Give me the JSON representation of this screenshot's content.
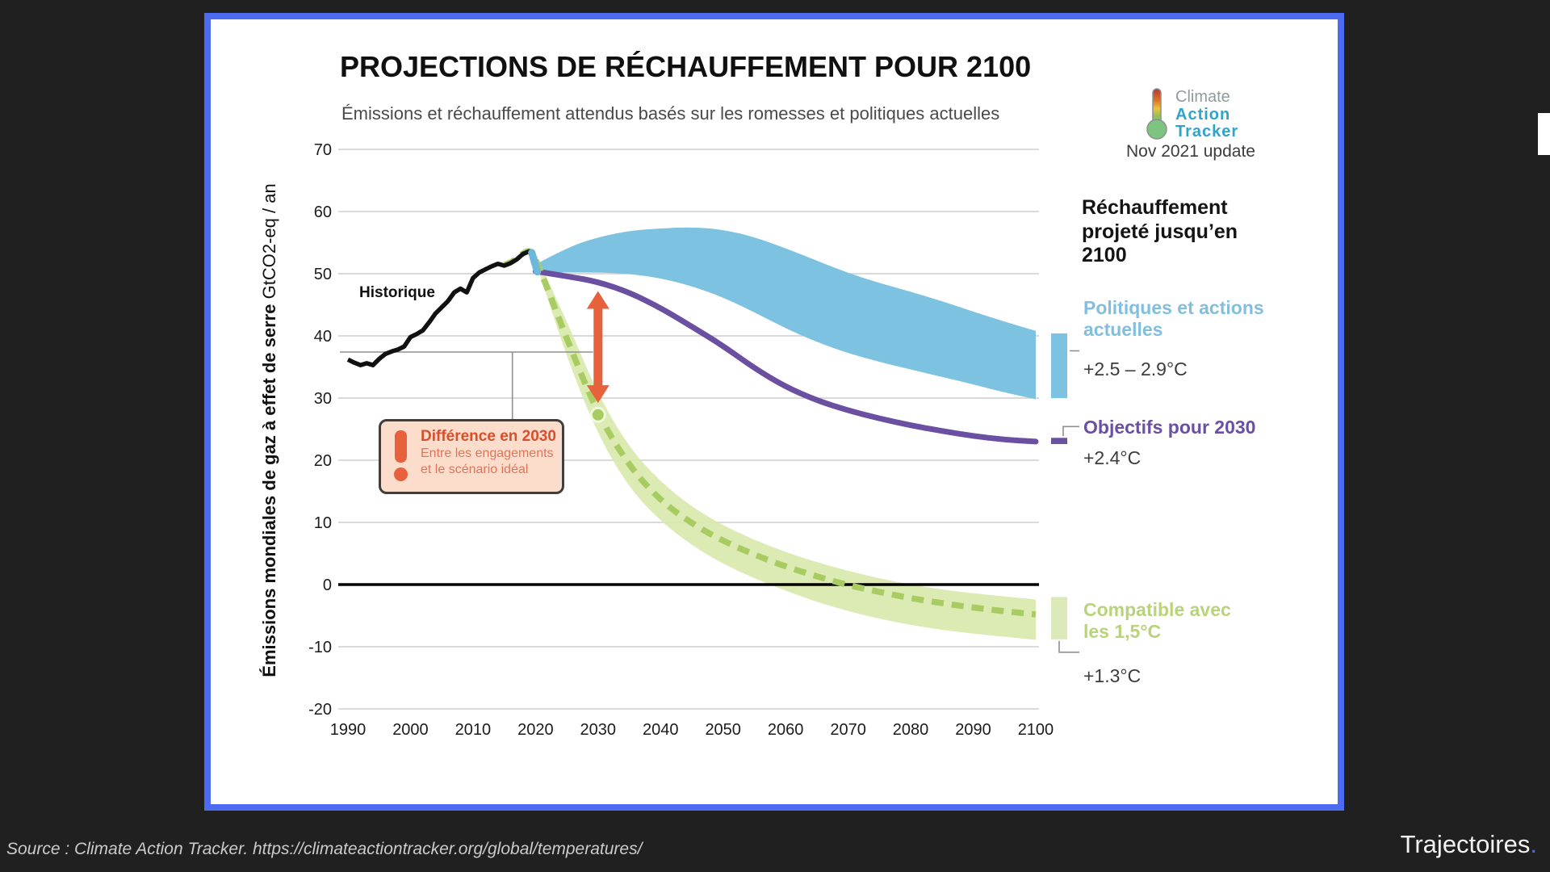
{
  "header": {
    "title": "PROJECTIONS DE RÉCHAUFFEMENT POUR 2100",
    "subtitle": "Émissions et réchauffement attendus basés sur les romesses et politiques actuelles"
  },
  "logo": {
    "line1": "Climate",
    "line2": "Action",
    "line3": "Tracker",
    "update": "Nov 2021 update"
  },
  "axis": {
    "ylabel_bold": "Émissions mondiales de gaz à effet de serre ",
    "ylabel_unit": "GtCO2-eq / an"
  },
  "chart_labels": {
    "historical": "Historique"
  },
  "annotation": {
    "title": "Différence en 2030",
    "line1": "Entre les engagements",
    "line2": "et le scénario idéal"
  },
  "legend": {
    "heading": "Réchauffement projeté jusqu’en 2100",
    "current_policies": {
      "label": "Politiques et actions actuelles",
      "temp": "+2.5 – 2.9°C"
    },
    "targets_2030": {
      "label": "Objectifs pour 2030",
      "temp": "+2.4°C"
    },
    "compatible_15": {
      "label": "Compatible avec les 1,5°C",
      "temp": "+1.3°C"
    }
  },
  "footer": {
    "source": "Source : Climate Action Tracker. https://climateactiontracker.org/global/temperatures/",
    "brand": "Trajectoires",
    "brand_dot": "."
  },
  "chart_data": {
    "type": "line",
    "title": "PROJECTIONS DE RÉCHAUFFEMENT POUR 2100",
    "ylabel": "Émissions mondiales de gaz à effet de serre GtCO2-eq / an",
    "xlim": [
      1988.5,
      2100
    ],
    "ylim": [
      -20,
      70
    ],
    "grid": true,
    "legend_position": "right",
    "xticks": [
      1990,
      2000,
      2010,
      2020,
      2030,
      2040,
      2050,
      2060,
      2070,
      2080,
      2090,
      2100
    ],
    "yticks": [
      70,
      60,
      50,
      40,
      30,
      20,
      10,
      0,
      -10,
      -20
    ],
    "colors": {
      "historical": "#111111",
      "current_policies_band": "#7ec2e2",
      "targets_2030": "#6b4fa0",
      "compatible_15_band": "#d9e8ae",
      "compatible_15": "#a9cc62",
      "grid": "#c3c3c3",
      "zero_line": "#000000",
      "arrow": "#e8613d",
      "connector": "#8f8f8f",
      "swatch_15": "#dce9b8"
    },
    "series": [
      {
        "id": "historical",
        "name": "Historique",
        "style": "solid",
        "color": "#111111",
        "x": [
          1990,
          1991,
          1992,
          1993,
          1994,
          1995,
          1996,
          1997,
          1998,
          1999,
          2000,
          2001,
          2002,
          2003,
          2004,
          2005,
          2006,
          2007,
          2008,
          2009,
          2010,
          2011,
          2012,
          2013,
          2014,
          2015,
          2016,
          2017,
          2018,
          2019,
          2020
        ],
        "y": [
          36.2,
          35.7,
          35.3,
          35.6,
          35.3,
          36.3,
          37.1,
          37.5,
          37.8,
          38.3,
          39.8,
          40.3,
          40.9,
          42.2,
          43.6,
          44.6,
          45.6,
          47.0,
          47.6,
          47.0,
          49.3,
          50.2,
          50.7,
          51.2,
          51.6,
          51.3,
          51.7,
          52.3,
          53.2,
          53.6,
          52.4
        ]
      },
      {
        "id": "current_policies_band",
        "name": "Politiques et actions actuelles (+2.5 – 2.9°C)",
        "type": "band",
        "color": "#7ec2e2",
        "x": [
          2020,
          2025,
          2030,
          2035,
          2040,
          2045,
          2050,
          2055,
          2060,
          2065,
          2070,
          2075,
          2080,
          2085,
          2090,
          2095,
          2100
        ],
        "upper": [
          51.5,
          54.2,
          55.9,
          56.9,
          57.3,
          57.5,
          57.1,
          55.9,
          54.1,
          52.1,
          50.1,
          48.5,
          47.1,
          45.6,
          43.9,
          42.3,
          40.8
        ],
        "lower": [
          50.2,
          50.2,
          50.2,
          50.0,
          49.3,
          48.0,
          46.2,
          43.8,
          41.2,
          39.0,
          37.2,
          35.8,
          34.6,
          33.4,
          32.2,
          30.9,
          29.8
        ]
      },
      {
        "id": "targets_2030",
        "name": "Objectifs pour 2030 (+2.4°C)",
        "style": "solid",
        "color": "#6b4fa0",
        "x": [
          2020,
          2025,
          2030,
          2035,
          2040,
          2045,
          2050,
          2055,
          2060,
          2065,
          2070,
          2075,
          2080,
          2085,
          2090,
          2095,
          2100
        ],
        "y": [
          50.4,
          49.6,
          48.7,
          47.0,
          44.5,
          41.5,
          38.4,
          34.8,
          31.8,
          29.6,
          28.0,
          26.7,
          25.6,
          24.7,
          23.9,
          23.3,
          23.0
        ]
      },
      {
        "id": "compatible_15_band",
        "name": "Compatible avec les 1,5°C (fourchette)",
        "type": "band",
        "color": "#d9e8ae",
        "x": [
          2020,
          2025,
          2030,
          2035,
          2040,
          2045,
          2050,
          2055,
          2060,
          2065,
          2070,
          2075,
          2080,
          2085,
          2090,
          2095,
          2100
        ],
        "upper": [
          53.2,
          42.5,
          30.5,
          22.0,
          16.5,
          12.5,
          9.5,
          7.2,
          5.2,
          3.6,
          2.2,
          1.0,
          0.0,
          -0.8,
          -1.4,
          -1.9,
          -2.4
        ],
        "lower": [
          52.0,
          36.5,
          24.0,
          15.5,
          10.2,
          6.3,
          3.3,
          1.0,
          -1.0,
          -2.8,
          -4.3,
          -5.5,
          -6.5,
          -7.3,
          -7.9,
          -8.4,
          -8.9
        ]
      },
      {
        "id": "compatible_15",
        "name": "Compatible avec les 1,5°C (+1.3°C)",
        "style": "dashed",
        "color": "#a9cc62",
        "x": [
          2015,
          2016,
          2017,
          2018,
          2019,
          2020,
          2025,
          2030,
          2035,
          2040,
          2045,
          2050,
          2055,
          2060,
          2065,
          2070,
          2075,
          2080,
          2085,
          2090,
          2095,
          2100
        ],
        "y": [
          51.4,
          51.8,
          52.4,
          53.3,
          53.8,
          52.6,
          39.5,
          27.3,
          19.0,
          13.5,
          9.8,
          7.0,
          4.8,
          2.9,
          1.3,
          -0.1,
          -1.2,
          -2.2,
          -3.0,
          -3.7,
          -4.3,
          -4.8
        ]
      }
    ],
    "annotations": {
      "gap_arrow": {
        "x": 2030,
        "from": 47.2,
        "to": 29.2
      },
      "gap_dot": {
        "x": 2030,
        "y": 27.3
      },
      "band_start_notch": {
        "x1": 2019.4,
        "v1": 53.4,
        "x2": 2020.3,
        "v2": 50.3,
        "color": "#6db7dc"
      },
      "callout_line": {
        "level": 37.4,
        "drop_x": 2016.3,
        "to_x": 2029.2
      },
      "legend_connector_level": 37.6,
      "swatches": {
        "current_policies": {
          "from": 40.4,
          "to": 30.0
        },
        "targets_2030": {
          "from": 23.6,
          "to": 22.6
        },
        "compatible_15": {
          "from": -2.0,
          "to": -8.8
        }
      }
    }
  }
}
